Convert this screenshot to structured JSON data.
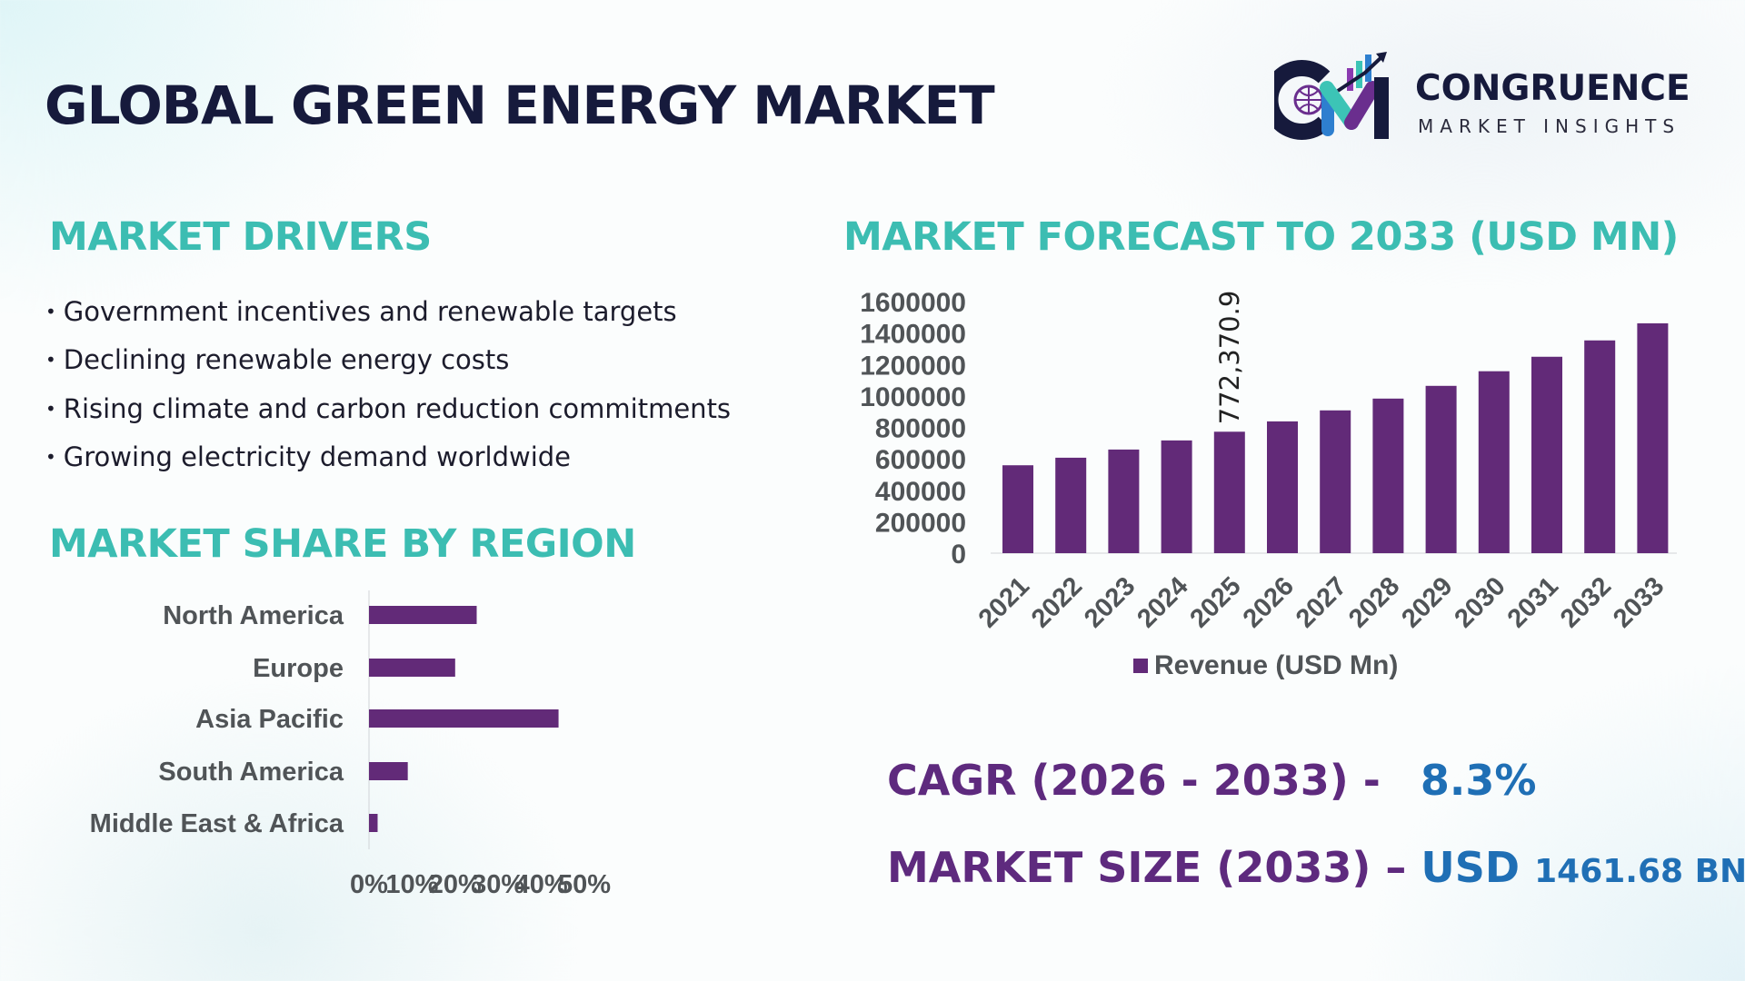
{
  "title": "GLOBAL GREEN ENERGY MARKET",
  "logo": {
    "name": "CONGRUENCE",
    "tagline": "MARKET INSIGHTS",
    "monogram": "CM"
  },
  "drivers": {
    "heading": "MARKET DRIVERS",
    "items": [
      "Government incentives and renewable targets",
      "Declining renewable energy costs",
      "Rising climate and carbon reduction commitments",
      "Growing electricity demand worldwide"
    ]
  },
  "colors": {
    "bar": "#622a78",
    "heading": "#3cbdb2",
    "purple_text": "#5e2a7e",
    "blue_text": "#1f6fb5",
    "title": "#161a3c"
  },
  "chart_data": [
    {
      "type": "bar",
      "title": "MARKET SHARE BY REGION",
      "orientation": "horizontal",
      "categories": [
        "North America",
        "Europe",
        "Asia Pacific",
        "South America",
        "Middle East & Africa"
      ],
      "values": [
        25,
        20,
        44,
        9,
        2
      ],
      "xlim": [
        0,
        50
      ],
      "xticks": [
        "0%",
        "10%",
        "20%",
        "30%",
        "40%",
        "50%"
      ],
      "grid": false
    },
    {
      "type": "bar",
      "title": "MARKET FORECAST TO 2033 (USD MN)",
      "categories": [
        "2021",
        "2022",
        "2023",
        "2024",
        "2025",
        "2026",
        "2027",
        "2028",
        "2029",
        "2030",
        "2031",
        "2032",
        "2033"
      ],
      "series": [
        {
          "name": "Revenue (USD Mn)",
          "values": [
            559000,
            607000,
            659000,
            717000,
            772370.9,
            838000,
            908000,
            983000,
            1064000,
            1157000,
            1249000,
            1353000,
            1461680
          ]
        }
      ],
      "data_labels": {
        "2025": "772,370.9"
      },
      "ylim": [
        0,
        1600000
      ],
      "yticks": [
        "0",
        "200000",
        "400000",
        "600000",
        "800000",
        "1000000",
        "1200000",
        "1400000",
        "1600000"
      ],
      "legend": "bottom",
      "grid": false
    }
  ],
  "cagr": {
    "label": "CAGR (2026 - 2033) -",
    "value": "8.3%"
  },
  "market_size": {
    "label": "MARKET SIZE (2033) –",
    "currency": "USD",
    "value": "1461.68 BN"
  }
}
